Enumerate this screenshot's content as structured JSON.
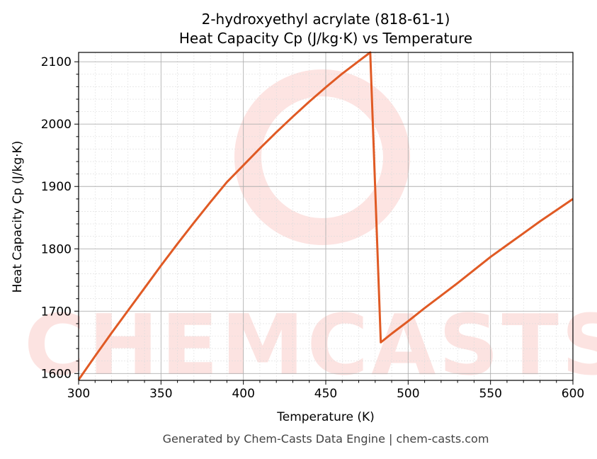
{
  "chart_data": {
    "type": "line",
    "title_line1": "2-hydroxyethyl acrylate (818-61-1)",
    "title_line2": "Heat Capacity Cp (J/kg·K) vs Temperature",
    "xlabel": "Temperature (K)",
    "ylabel": "Heat Capacity Cp (J/kg·K)",
    "xlim": [
      300,
      600
    ],
    "ylim": [
      1589,
      2115
    ],
    "xticks": [
      300,
      350,
      400,
      450,
      500,
      550,
      600
    ],
    "yticks": [
      1600,
      1700,
      1800,
      1900,
      2000,
      2100
    ],
    "grid": true,
    "line_color": "#e05a24",
    "series": [
      {
        "x": [
          300,
          310,
          320,
          330,
          340,
          350,
          360,
          370,
          380,
          390,
          400,
          410,
          420,
          430,
          440,
          450,
          460,
          470,
          477,
          483.4,
          490,
          500,
          510,
          520,
          530,
          540,
          550,
          560,
          570,
          580,
          590,
          600
        ],
        "y": [
          1590,
          1628,
          1665,
          1701,
          1737,
          1773,
          1808,
          1842,
          1875,
          1907,
          1934,
          1961,
          1987,
          2012,
          2036,
          2059,
          2081,
          2101,
          2115,
          1650,
          1664,
          1684,
          1705,
          1725,
          1745,
          1766,
          1787,
          1806,
          1825,
          1844,
          1862,
          1880
        ]
      }
    ]
  },
  "watermark": "CHEMCASTS",
  "footer": "Generated by Chem-Casts Data Engine | chem-casts.com"
}
